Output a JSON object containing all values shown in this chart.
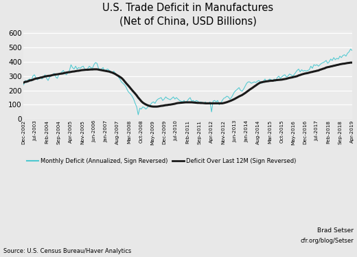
{
  "title": "U.S. Trade Deficit in Manufactures\n(Net of China, USD Billions)",
  "title_fontsize": 10.5,
  "ylim": [
    0,
    620
  ],
  "yticks": [
    0,
    100,
    200,
    300,
    400,
    500,
    600
  ],
  "source_text": "Source: U.S. Census Bureau/Haver Analytics",
  "credit_text": "cfr.org/blog/Setser",
  "author_text": "Brad Setser",
  "monthly_color": "#4DC8D0",
  "rolling_color": "#1a1a1a",
  "bg_color": "#e8e8e8",
  "plot_bg_color": "#ebebeb",
  "legend_label_monthly": "Monthly Deficit (Annualized, Sign Reversed)",
  "legend_label_rolling": "Deficit Over Last 12M (Sign Reversed)",
  "monthly_data": [
    240,
    270,
    255,
    275,
    280,
    265,
    300,
    310,
    290,
    275,
    285,
    295,
    280,
    295,
    310,
    285,
    270,
    295,
    300,
    310,
    320,
    295,
    285,
    310,
    315,
    330,
    340,
    320,
    310,
    325,
    340,
    380,
    360,
    350,
    370,
    350,
    360,
    355,
    365,
    370,
    350,
    340,
    355,
    370,
    360,
    355,
    380,
    395,
    390,
    355,
    340,
    350,
    360,
    335,
    345,
    350,
    340,
    335,
    320,
    335,
    320,
    310,
    295,
    280,
    260,
    250,
    240,
    225,
    200,
    185,
    175,
    160,
    140,
    110,
    85,
    30,
    75,
    70,
    85,
    80,
    70,
    80,
    95,
    100,
    115,
    120,
    110,
    130,
    140,
    145,
    150,
    130,
    140,
    155,
    145,
    140,
    135,
    145,
    155,
    140,
    150,
    140,
    130,
    125,
    120,
    130,
    115,
    125,
    140,
    150,
    125,
    130,
    120,
    130,
    125,
    115,
    120,
    115,
    110,
    120,
    105,
    110,
    120,
    50,
    125,
    130,
    120,
    130,
    100,
    110,
    130,
    145,
    150,
    160,
    155,
    140,
    150,
    170,
    190,
    200,
    210,
    220,
    200,
    195,
    210,
    230,
    250,
    260,
    260,
    250,
    255,
    260,
    255,
    265,
    270,
    260,
    250,
    265,
    280,
    260,
    270,
    280,
    275,
    270,
    280,
    265,
    290,
    300,
    285,
    295,
    305,
    310,
    295,
    300,
    315,
    310,
    300,
    310,
    325,
    340,
    350,
    330,
    345,
    335,
    340,
    335,
    340,
    345,
    370,
    355,
    380,
    375,
    380,
    370,
    380,
    390,
    395,
    400,
    410,
    390,
    400,
    420,
    410,
    430,
    415,
    425,
    420,
    440,
    430,
    445,
    450,
    440,
    460,
    470,
    490,
    480
  ],
  "rolling_data": [
    255,
    260,
    262,
    265,
    270,
    272,
    275,
    280,
    283,
    285,
    287,
    290,
    292,
    295,
    298,
    300,
    302,
    303,
    305,
    308,
    310,
    312,
    313,
    315,
    317,
    318,
    320,
    323,
    325,
    327,
    328,
    330,
    332,
    333,
    335,
    337,
    338,
    340,
    342,
    343,
    344,
    345,
    345,
    346,
    347,
    347,
    348,
    348,
    348,
    346,
    344,
    342,
    340,
    338,
    336,
    334,
    332,
    328,
    325,
    320,
    315,
    308,
    302,
    295,
    288,
    278,
    265,
    252,
    240,
    228,
    215,
    202,
    190,
    178,
    165,
    150,
    138,
    125,
    115,
    108,
    102,
    97,
    93,
    90,
    88,
    87,
    87,
    87,
    88,
    90,
    92,
    93,
    95,
    97,
    98,
    100,
    101,
    103,
    105,
    107,
    110,
    112,
    113,
    114,
    115,
    116,
    117,
    117,
    117,
    117,
    117,
    116,
    115,
    114,
    113,
    113,
    112,
    112,
    111,
    110,
    110,
    110,
    110,
    110,
    110,
    110,
    110,
    110,
    110,
    110,
    110,
    112,
    115,
    118,
    122,
    126,
    130,
    135,
    140,
    146,
    152,
    158,
    163,
    168,
    175,
    182,
    190,
    198,
    206,
    213,
    220,
    228,
    235,
    243,
    250,
    255,
    258,
    260,
    262,
    264,
    265,
    267,
    268,
    268,
    270,
    272,
    273,
    274,
    275,
    276,
    278,
    280,
    282,
    285,
    288,
    290,
    292,
    295,
    297,
    300,
    305,
    308,
    312,
    315,
    318,
    320,
    322,
    325,
    328,
    330,
    333,
    335,
    338,
    340,
    345,
    348,
    352,
    355,
    360,
    363,
    365,
    368,
    370,
    373,
    375,
    378,
    380,
    383,
    385,
    387,
    388,
    390,
    392,
    393,
    395,
    395
  ],
  "tick_labels": [
    "Dec-2002",
    "Jul-2003",
    "Feb-2004",
    "Sep-2004",
    "Apr-2005",
    "Nov-2005",
    "Jun-2006",
    "Jan-2007",
    "Aug-2007",
    "Mar-2008",
    "Oct-2008",
    "May-2009",
    "Dec-2009",
    "Jul-2010",
    "Feb-2011",
    "Sep-2011",
    "Apr-2012",
    "Nov-2012",
    "Jun-2013",
    "Jan-2014",
    "Aug-2014",
    "Mar-2015",
    "Oct-2015",
    "May-2016",
    "Dec-2016",
    "Jul-2017",
    "Feb-2018",
    "Sep-2018",
    "Apr-2019"
  ]
}
